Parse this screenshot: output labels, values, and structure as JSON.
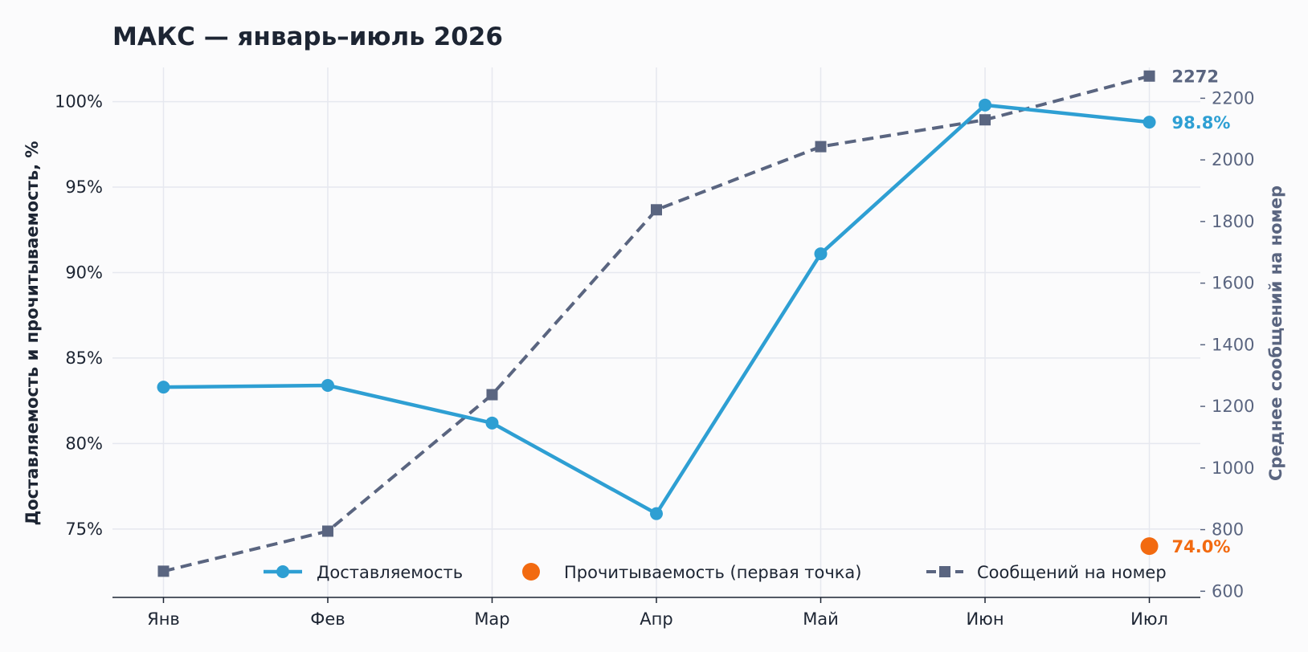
{
  "colors": {
    "delivery": "#2e9fd3",
    "read": "#f26a10",
    "messages": "#5a6580",
    "grid": "#e6e8ef",
    "axis": "#1d2533",
    "background": "#fbfbfc"
  },
  "chart_data": {
    "type": "line",
    "title": "МАКС — январь–июль 2026",
    "categories": [
      "Янв",
      "Фев",
      "Мар",
      "Апр",
      "Май",
      "Июн",
      "Июл"
    ],
    "ylabel": "Доставляемость и прочитываемость, %",
    "y2label": "Среднее сообщений на номер",
    "ylim": [
      71,
      102
    ],
    "y2lim": [
      580,
      2300
    ],
    "yticks": [
      "75%",
      "80%",
      "85%",
      "90%",
      "95%",
      "100%"
    ],
    "y2ticks": [
      "600",
      "800",
      "1000",
      "1200",
      "1400",
      "1600",
      "1800",
      "2000",
      "2200"
    ],
    "grid": true,
    "legend_position": "bottom",
    "series": [
      {
        "name": "Доставляемость",
        "axis": "left",
        "style": "solid-circle",
        "values": [
          83.3,
          83.4,
          81.2,
          75.9,
          91.1,
          99.8,
          98.8
        ]
      },
      {
        "name": "Прочитываемость (первая точка)",
        "axis": "left",
        "style": "point",
        "values": [
          null,
          null,
          null,
          null,
          null,
          null,
          74.0
        ]
      },
      {
        "name": "Сообщений на номер",
        "axis": "right",
        "style": "dashed-square",
        "values": [
          665,
          795,
          1238,
          1838,
          2043,
          2130,
          2272
        ]
      }
    ],
    "annotations": {
      "messages_end": "2272",
      "delivery_end": "98.8%",
      "read_end": "74.0%"
    }
  }
}
